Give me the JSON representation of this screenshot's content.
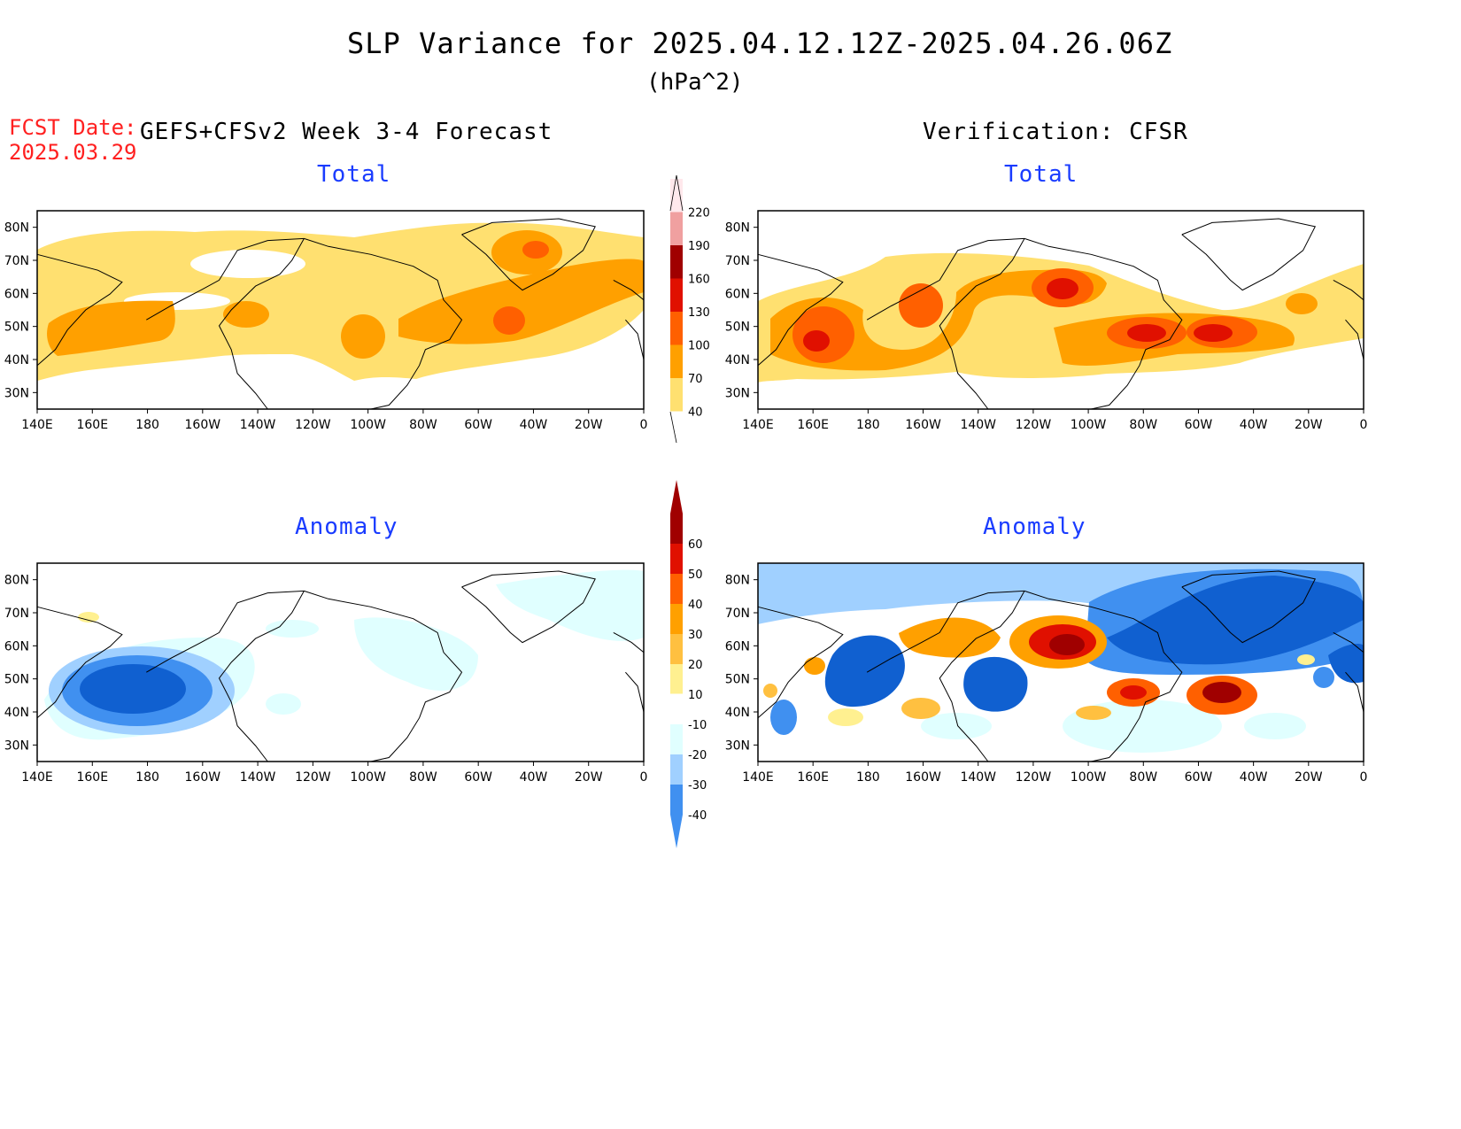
{
  "header": {
    "title": "SLP Variance for 2025.04.12.12Z-2025.04.26.06Z",
    "units": "(hPa^2)",
    "fcst_label": "FCST Date:",
    "fcst_date": "2025.03.29",
    "forecast_label": "GEFS+CFSv2 Week 3-4 Forecast",
    "verification_label": "Verification: CFSR"
  },
  "panels": {
    "forecast_total_title": "Total",
    "verif_total_title": "Total",
    "forecast_anomaly_title": "Anomaly",
    "verif_anomaly_title": "Anomaly"
  },
  "axes": {
    "lat_labels": [
      "80N",
      "70N",
      "60N",
      "50N",
      "40N",
      "30N"
    ],
    "lon_labels": [
      "140E",
      "160E",
      "180",
      "160W",
      "140W",
      "120W",
      "100W",
      "80W",
      "60W",
      "40W",
      "20W",
      "0"
    ]
  },
  "colorbars": {
    "total": {
      "labels": [
        "220",
        "190",
        "160",
        "130",
        "100",
        "70",
        "40"
      ],
      "colors": [
        "#ffe8ec",
        "#f0a0a0",
        "#a00000",
        "#e01000",
        "#ff6000",
        "#ffa000",
        "#ffe070"
      ]
    },
    "anomaly": {
      "labels": [
        "60",
        "50",
        "40",
        "30",
        "20",
        "10",
        "-10",
        "-20",
        "-30",
        "-40"
      ],
      "colors": [
        "#a00000",
        "#e01000",
        "#ff6000",
        "#ffa000",
        "#ffc040",
        "#fff090",
        "#ffffff",
        "#e0ffff",
        "#a0d0ff",
        "#4090f0",
        "#1060d0"
      ]
    }
  },
  "colors": {
    "title_text": "#000000",
    "fcst_date": "#ff2020",
    "panel_title": "#1a3cff"
  }
}
